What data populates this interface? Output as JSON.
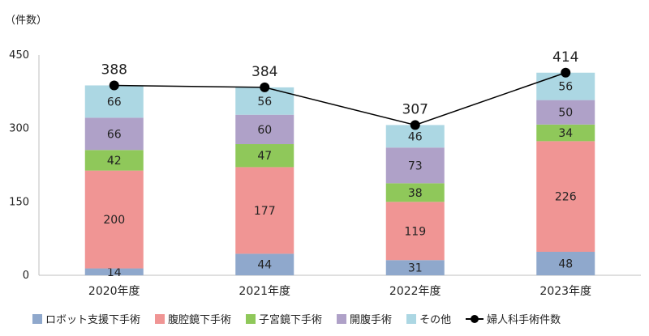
{
  "chart_data": {
    "type": "bar",
    "unit_label": "（件数）",
    "categories": [
      "2020年度",
      "2021年度",
      "2022年度",
      "2023年度"
    ],
    "y_ticks": [
      "0",
      "150",
      "300",
      "450"
    ],
    "ylim": [
      0,
      450
    ],
    "stacked": true,
    "grid": false,
    "legend_position": "bottom",
    "series": [
      {
        "name": "ロボット支援下手術",
        "color": "#8fa8cc",
        "values": [
          14,
          44,
          31,
          48
        ]
      },
      {
        "name": "腹腔鏡下手術",
        "color": "#f09594",
        "values": [
          200,
          177,
          119,
          226
        ]
      },
      {
        "name": "子宮鏡下手術",
        "color": "#8fc85a",
        "values": [
          42,
          47,
          38,
          34
        ]
      },
      {
        "name": "開腹手術",
        "color": "#afa1c8",
        "values": [
          66,
          60,
          73,
          50
        ]
      },
      {
        "name": "その他",
        "color": "#acd7e3",
        "values": [
          66,
          56,
          46,
          56
        ]
      }
    ],
    "line_series": {
      "name": "婦人科手術件数",
      "color": "#000000",
      "values": [
        388,
        384,
        307,
        414
      ]
    }
  }
}
